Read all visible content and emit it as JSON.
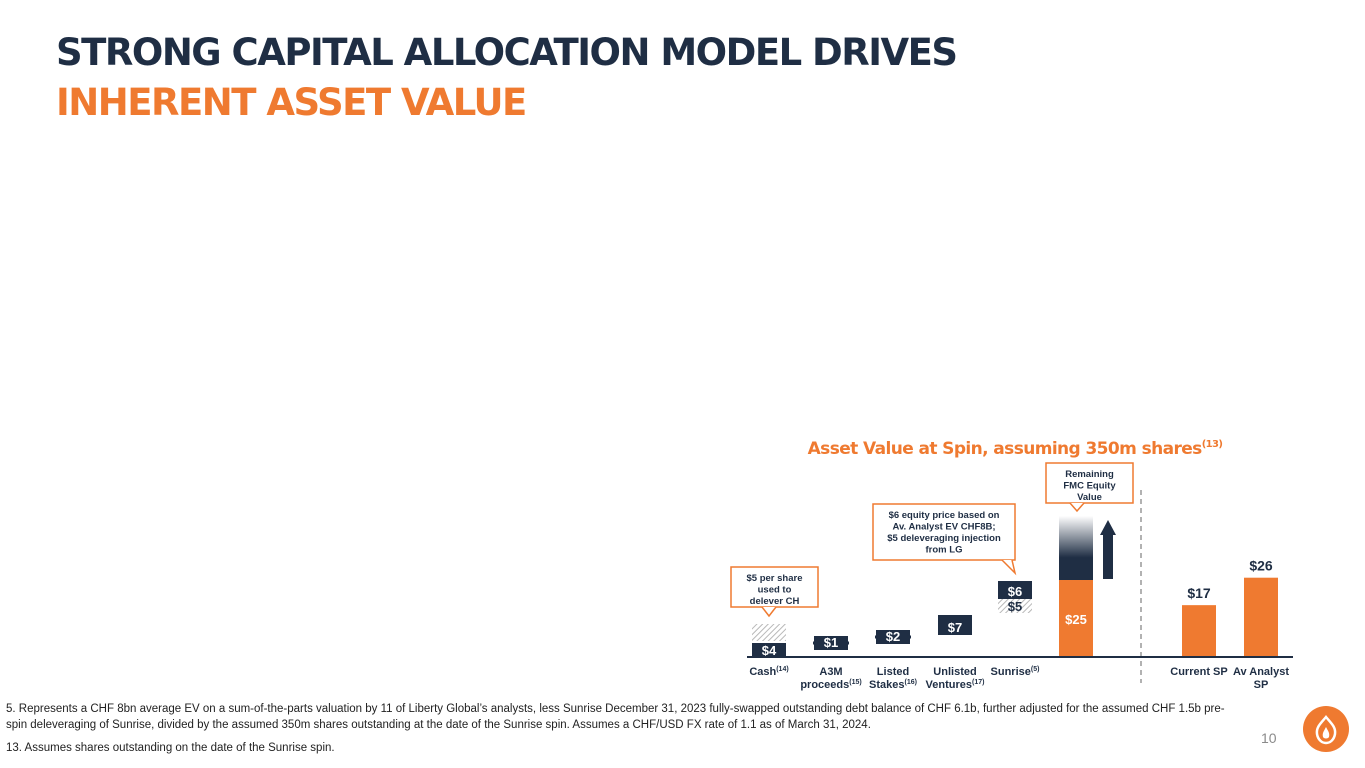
{
  "title": {
    "line1": "STRONG CAPITAL ALLOCATION MODEL DRIVES",
    "line2": "INHERENT ASSET VALUE"
  },
  "chart_data": {
    "type": "bar",
    "title": "Asset Value at Spin, assuming 350m shares",
    "title_sup": "(13)",
    "unit": "$ per share",
    "ylim": [
      0,
      27
    ],
    "categories": [
      {
        "lines": [
          "Cash"
        ],
        "sup": "(14)"
      },
      {
        "lines": [
          "A3M",
          "proceeds"
        ],
        "sup": "(15)"
      },
      {
        "lines": [
          "Listed",
          "Stakes"
        ],
        "sup": "(16)"
      },
      {
        "lines": [
          "Unlisted",
          "Ventures"
        ],
        "sup": "(17)"
      },
      {
        "lines": [
          "Sunrise"
        ],
        "sup": "(5)"
      },
      {
        "lines": [
          ""
        ],
        "sup": ""
      },
      {
        "lines": [
          "Current SP"
        ],
        "sup": ""
      },
      {
        "lines": [
          "Av Analyst",
          "SP"
        ],
        "sup": ""
      }
    ],
    "values": [
      4,
      1,
      2,
      7,
      6,
      25,
      17,
      26
    ],
    "value_labels": [
      "$4",
      "$1",
      "$2",
      "$7",
      "$6",
      "$25",
      "$17",
      "$26"
    ],
    "secondary_values": {
      "cash_used_for_deleveraging": 5,
      "sunrise_deleveraging_injection": 5
    },
    "secondary_labels": {
      "sunrise": "$5"
    },
    "callouts": {
      "cash": [
        "$5 per share",
        "used to",
        "delever CH"
      ],
      "sunrise": [
        "$6 equity price based on",
        "Av. Analyst EV CHF8B;",
        "$5 deleveraging injection",
        "from LG"
      ],
      "remaining": [
        "Remaining",
        "FMC Equity",
        "Value"
      ]
    },
    "colors": {
      "navy": "#1f2e44",
      "orange": "#ef7a30",
      "hatch": "#b8b8b8"
    }
  },
  "footnotes": {
    "note5": "5. Represents a CHF 8bn average EV on a sum-of-the-parts valuation by 11 of Liberty Global’s analysts, less Sunrise December 31, 2023 fully-swapped outstanding debt balance of CHF 6.1b, further adjusted for the assumed CHF 1.5b pre-spin deleveraging of Sunrise, divided by the assumed 350m shares outstanding at the date of the Sunrise spin. Assumes a CHF/USD FX rate of 1.1 as of March 31, 2024.",
    "note13": "13. Assumes shares outstanding on the date of the Sunrise spin."
  },
  "page_number": "10"
}
